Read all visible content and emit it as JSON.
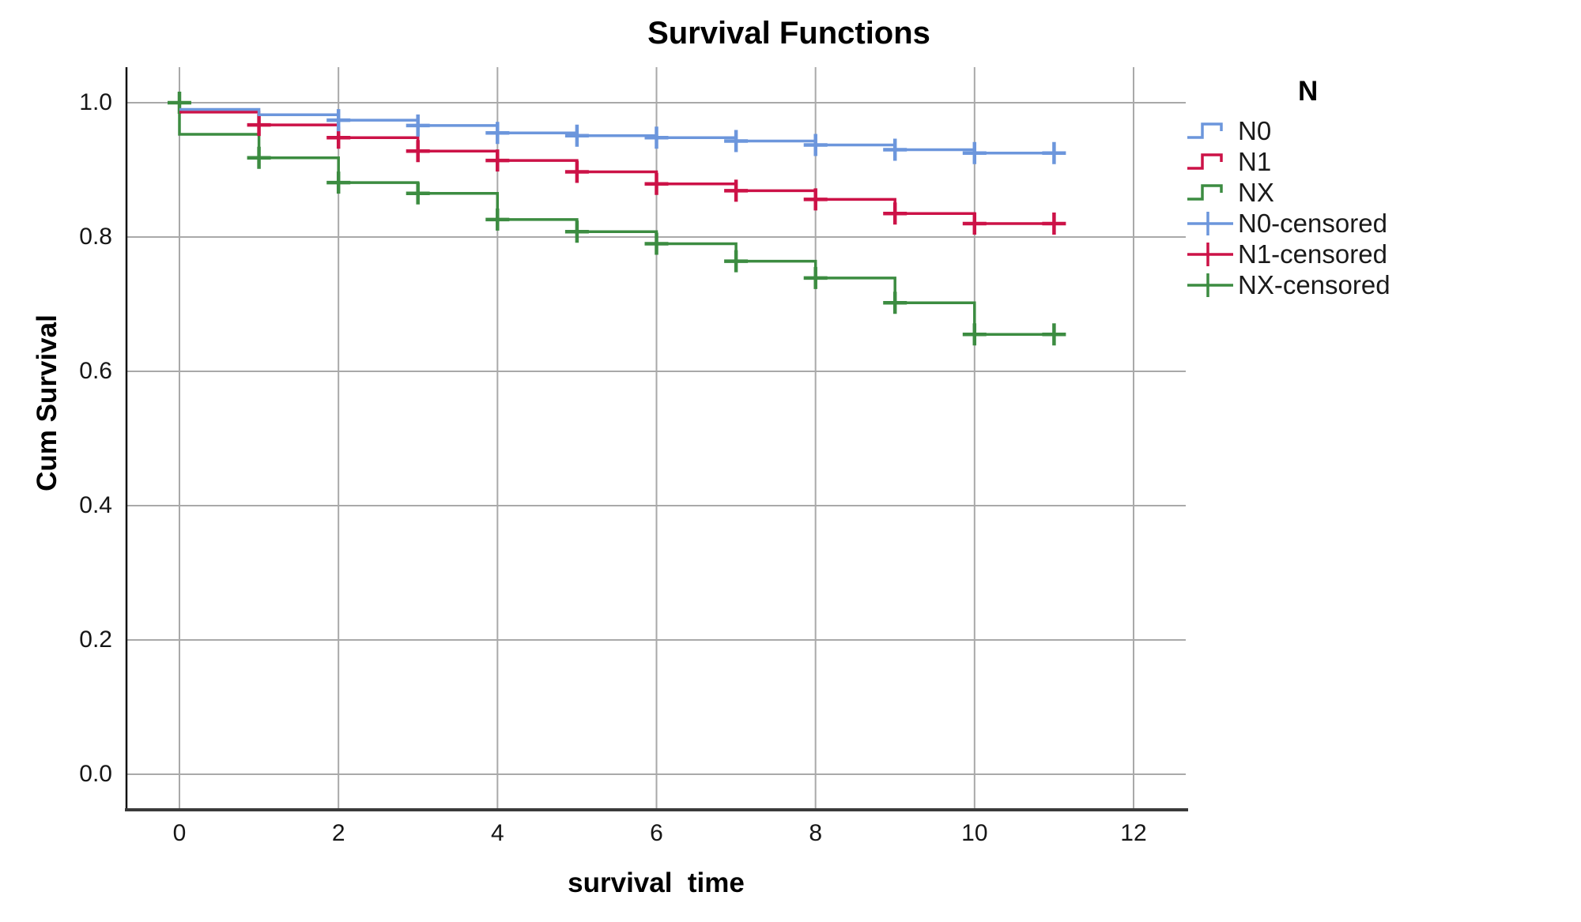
{
  "title": "Survival Functions",
  "axes": {
    "x": {
      "label": "survival  time",
      "ticks": [
        {
          "label": "0",
          "value": 0
        },
        {
          "label": "2",
          "value": 2
        },
        {
          "label": "4",
          "value": 4
        },
        {
          "label": "6",
          "value": 6
        },
        {
          "label": "8",
          "value": 8
        },
        {
          "label": "10",
          "value": 10
        },
        {
          "label": "12",
          "value": 12
        }
      ]
    },
    "y": {
      "label": "Cum Survival",
      "ticks": [
        {
          "label": "1.0",
          "value": 1.0
        },
        {
          "label": "0.8",
          "value": 0.8
        },
        {
          "label": "0.6",
          "value": 0.6
        },
        {
          "label": "0.4",
          "value": 0.4
        },
        {
          "label": "0.2",
          "value": 0.2
        },
        {
          "label": "0.0",
          "value": 0.0
        }
      ]
    }
  },
  "legend": {
    "title": "N",
    "items": [
      {
        "label": "N0",
        "glyph": "step",
        "color": "#6C96DC"
      },
      {
        "label": "N1",
        "glyph": "step",
        "color": "#CC1247"
      },
      {
        "label": "NX",
        "glyph": "step",
        "color": "#3C8C41"
      },
      {
        "label": "N0-censored",
        "glyph": "plus",
        "color": "#6C96DC"
      },
      {
        "label": "N1-censored",
        "glyph": "plus",
        "color": "#CC1247"
      },
      {
        "label": "NX-censored",
        "glyph": "plus",
        "color": "#3C8C41"
      }
    ]
  },
  "colors": {
    "grid": "#A9A9A9",
    "axis_left": "#111111",
    "axis_bottom": "#3A3A3A",
    "n0": "#6C96DC",
    "n1": "#CC1247",
    "nx": "#3C8C41"
  },
  "chart_data": {
    "type": "line",
    "subtype": "kaplan-meier-step",
    "title": "Survival Functions",
    "xlabel": "survival  time",
    "ylabel": "Cum Survival",
    "xlim": [
      0,
      12
    ],
    "ylim": [
      0.0,
      1.0
    ],
    "grid": true,
    "legend_position": "right",
    "series": [
      {
        "name": "NX",
        "color": "#3C8C41",
        "start": [
          0,
          1.0
        ],
        "steps": [
          [
            0,
            0.953
          ],
          [
            1,
            0.918
          ],
          [
            2,
            0.881
          ],
          [
            3,
            0.865
          ],
          [
            4,
            0.826
          ],
          [
            5,
            0.808
          ],
          [
            6,
            0.79
          ],
          [
            7,
            0.764
          ],
          [
            8,
            0.739
          ],
          [
            9,
            0.702
          ],
          [
            10,
            0.655
          ]
        ],
        "end_x": 11.08,
        "censored": [
          [
            0,
            1.0
          ],
          [
            1,
            0.918
          ],
          [
            2,
            0.881
          ],
          [
            3,
            0.865
          ],
          [
            4,
            0.826
          ],
          [
            5,
            0.808
          ],
          [
            6,
            0.79
          ],
          [
            7,
            0.764
          ],
          [
            8,
            0.739
          ],
          [
            9,
            0.702
          ],
          [
            10,
            0.655
          ],
          [
            11,
            0.655
          ]
        ]
      },
      {
        "name": "N1",
        "color": "#CC1247",
        "start": [
          0,
          0.986
        ],
        "steps": [
          [
            1,
            0.967
          ],
          [
            2,
            0.948
          ],
          [
            3,
            0.928
          ],
          [
            4,
            0.914
          ],
          [
            5,
            0.897
          ],
          [
            6,
            0.879
          ],
          [
            7,
            0.869
          ],
          [
            8,
            0.856
          ],
          [
            9,
            0.835
          ],
          [
            10,
            0.82
          ]
        ],
        "end_x": 11.08,
        "censored": [
          [
            1,
            0.967
          ],
          [
            2,
            0.948
          ],
          [
            3,
            0.928
          ],
          [
            4,
            0.914
          ],
          [
            5,
            0.897
          ],
          [
            6,
            0.879
          ],
          [
            7,
            0.869
          ],
          [
            8,
            0.856
          ],
          [
            9,
            0.835
          ],
          [
            10,
            0.82
          ],
          [
            11,
            0.82
          ]
        ]
      },
      {
        "name": "N0",
        "color": "#6C96DC",
        "start": [
          0,
          0.99
        ],
        "steps": [
          [
            1,
            0.982
          ],
          [
            2,
            0.974
          ],
          [
            3,
            0.966
          ],
          [
            4,
            0.955
          ],
          [
            5,
            0.951
          ],
          [
            6,
            0.948
          ],
          [
            7,
            0.943
          ],
          [
            8,
            0.937
          ],
          [
            9,
            0.93
          ],
          [
            10,
            0.925
          ]
        ],
        "end_x": 11.08,
        "censored": [
          [
            2,
            0.974
          ],
          [
            3,
            0.966
          ],
          [
            4,
            0.955
          ],
          [
            5,
            0.951
          ],
          [
            6,
            0.948
          ],
          [
            7,
            0.943
          ],
          [
            8,
            0.937
          ],
          [
            9,
            0.93
          ],
          [
            10,
            0.925
          ],
          [
            11,
            0.925
          ]
        ]
      }
    ]
  }
}
